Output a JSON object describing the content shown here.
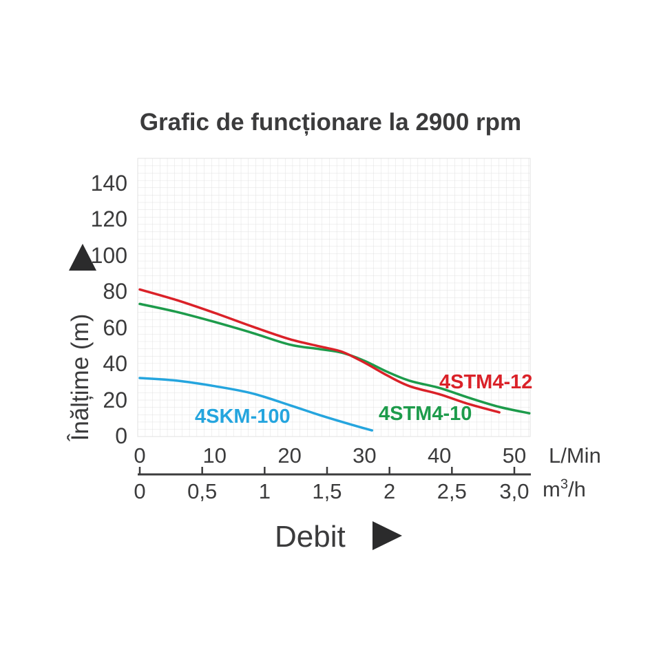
{
  "title": "Grafic de funcționare la 2900 rpm",
  "colors": {
    "ink": "#3b3b3c",
    "grid": "#e0e0e0",
    "arrow": "#2b2b2c"
  },
  "chart_data": {
    "type": "line",
    "title": "Grafic de funcționare la 2900 rpm",
    "xlabel": "Debit",
    "ylabel": "Înălțime (m)",
    "grid": true,
    "ylim": [
      0,
      150
    ],
    "yticks": [
      {
        "value": 140,
        "label": "140"
      },
      {
        "value": 120,
        "label": "120"
      },
      {
        "value": 100,
        "label": "100"
      },
      {
        "value": 80,
        "label": "80"
      },
      {
        "value": 60,
        "label": "60"
      },
      {
        "value": 40,
        "label": "40"
      },
      {
        "value": 20,
        "label": "20"
      },
      {
        "value": 0,
        "label": "0"
      }
    ],
    "x_axes": [
      {
        "unit": "L/Min",
        "xlim": [
          0,
          52
        ],
        "ticks": [
          {
            "value": 0,
            "label": "0"
          },
          {
            "value": 10,
            "label": "10"
          },
          {
            "value": 20,
            "label": "20"
          },
          {
            "value": 30,
            "label": "30"
          },
          {
            "value": 40,
            "label": "40"
          },
          {
            "value": 50,
            "label": "50"
          }
        ]
      },
      {
        "unit": "m³/h",
        "unit_prefix": "m",
        "unit_sup": "3",
        "unit_suffix": "/h",
        "xlim": [
          0,
          3.1
        ],
        "ticks": [
          {
            "value": 0,
            "label": "0"
          },
          {
            "value": 0.5,
            "label": "0,5"
          },
          {
            "value": 1,
            "label": "1"
          },
          {
            "value": 1.5,
            "label": "1,5"
          },
          {
            "value": 2,
            "label": "2"
          },
          {
            "value": 2.5,
            "label": "2,5"
          },
          {
            "value": 3,
            "label": "3,0"
          }
        ]
      }
    ],
    "series": [
      {
        "name": "4SKM-100",
        "color": "#25a5de",
        "points_lmin_m": [
          [
            0,
            32
          ],
          [
            5,
            30.5
          ],
          [
            10,
            27.5
          ],
          [
            15,
            23.5
          ],
          [
            20,
            17
          ],
          [
            24,
            11.5
          ],
          [
            28,
            6.5
          ],
          [
            31,
            3
          ]
        ]
      },
      {
        "name": "4STM4-10",
        "color": "#1d9b4b",
        "points_lmin_m": [
          [
            0,
            73
          ],
          [
            5,
            68.5
          ],
          [
            10,
            63
          ],
          [
            15,
            57
          ],
          [
            20,
            50.5
          ],
          [
            24,
            48
          ],
          [
            27,
            46
          ],
          [
            30,
            41.5
          ],
          [
            33,
            35.5
          ],
          [
            36,
            30.5
          ],
          [
            40,
            26.5
          ],
          [
            44,
            21
          ],
          [
            48,
            16
          ],
          [
            52,
            12.5
          ]
        ]
      },
      {
        "name": "4STM4-12",
        "color": "#da2128",
        "points_lmin_m": [
          [
            0,
            81
          ],
          [
            5,
            75
          ],
          [
            10,
            68
          ],
          [
            15,
            60.5
          ],
          [
            20,
            53.5
          ],
          [
            24,
            49.5
          ],
          [
            27,
            46.5
          ],
          [
            30,
            40.5
          ],
          [
            33,
            33.5
          ],
          [
            36,
            27.5
          ],
          [
            40,
            23
          ],
          [
            44,
            17.5
          ],
          [
            48,
            13
          ]
        ]
      }
    ]
  }
}
